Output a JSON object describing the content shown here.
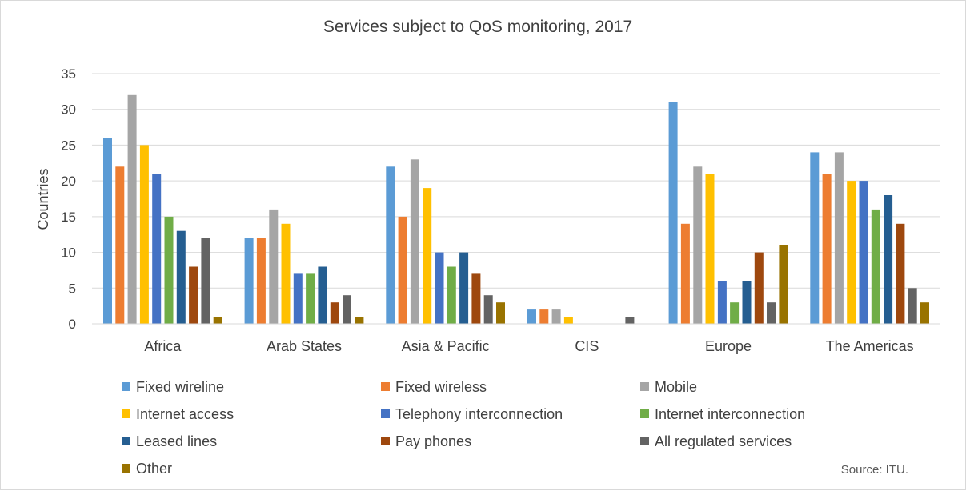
{
  "chart_data": {
    "type": "bar",
    "title": "Services subject to QoS monitoring, 2017",
    "xlabel": "",
    "ylabel": "Countries",
    "ylim": [
      0,
      35
    ],
    "yticks": [
      0,
      5,
      10,
      15,
      20,
      25,
      30,
      35
    ],
    "grid": true,
    "legend_position": "bottom",
    "categories": [
      "Africa",
      "Arab States",
      "Asia & Pacific",
      "CIS",
      "Europe",
      "The Americas"
    ],
    "series": [
      {
        "name": "Fixed wireline",
        "color": "#5b9bd5",
        "values": [
          26,
          12,
          22,
          2,
          31,
          24
        ]
      },
      {
        "name": "Fixed wireless",
        "color": "#ed7d31",
        "values": [
          22,
          12,
          15,
          2,
          14,
          21
        ]
      },
      {
        "name": "Mobile",
        "color": "#a5a5a5",
        "values": [
          32,
          16,
          23,
          2,
          22,
          24
        ]
      },
      {
        "name": "Internet access",
        "color": "#ffc000",
        "values": [
          25,
          14,
          19,
          1,
          21,
          20
        ]
      },
      {
        "name": "Telephony interconnection",
        "color": "#4472c4",
        "values": [
          21,
          7,
          10,
          0,
          6,
          20
        ]
      },
      {
        "name": "Internet interconnection",
        "color": "#70ad47",
        "values": [
          15,
          7,
          8,
          0,
          3,
          16
        ]
      },
      {
        "name": "Leased lines",
        "color": "#255e91",
        "values": [
          13,
          8,
          10,
          0,
          6,
          18
        ]
      },
      {
        "name": "Pay phones",
        "color": "#9e480e",
        "values": [
          8,
          3,
          7,
          0,
          10,
          14
        ]
      },
      {
        "name": "All regulated services",
        "color": "#636363",
        "values": [
          12,
          4,
          4,
          1,
          3,
          5
        ]
      },
      {
        "name": "Other",
        "color": "#997300",
        "values": [
          1,
          1,
          3,
          0,
          11,
          3
        ]
      }
    ],
    "source": "Source: ITU."
  }
}
